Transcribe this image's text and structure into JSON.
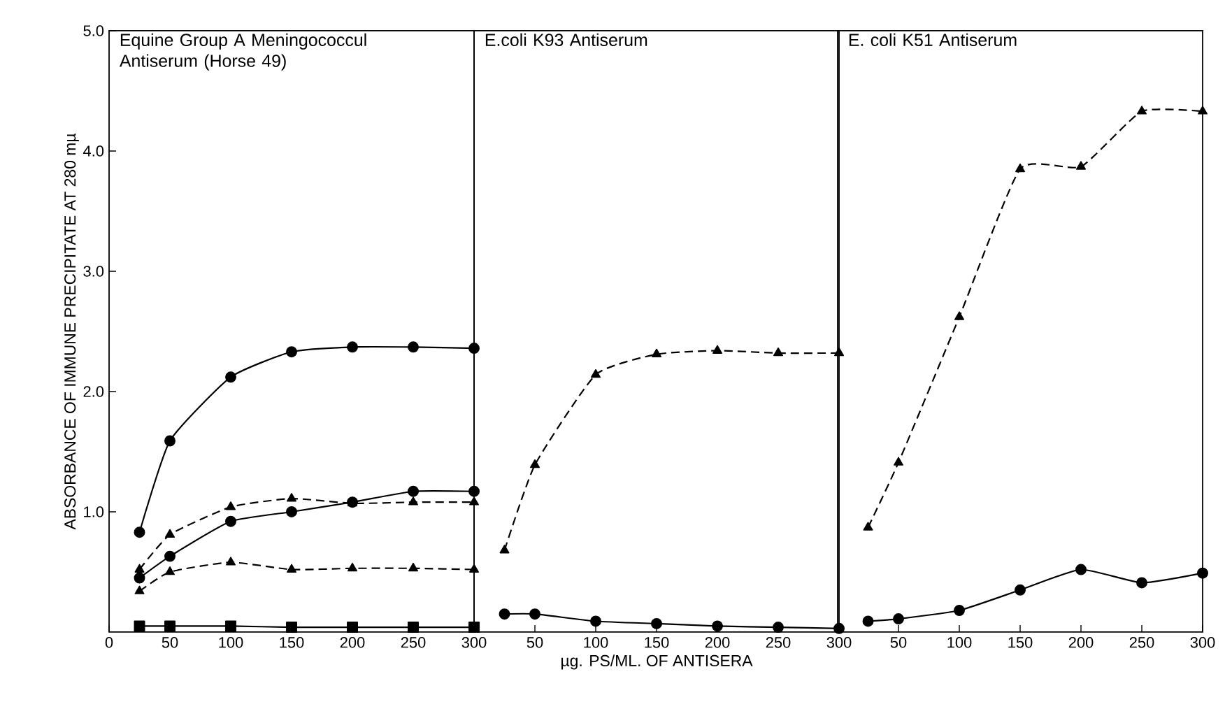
{
  "chart_data": [
    {
      "type": "line",
      "title": "Equine Group A Meningococcul Antiserum (Horse 49)",
      "ylabel": "ABSORBANCE OF IMMUNE PRECIPITATE AT 280 mµ",
      "x": [
        25,
        50,
        100,
        150,
        200,
        250,
        300
      ],
      "xlim": [
        0,
        300
      ],
      "xticks": [
        0,
        50,
        100,
        150,
        200,
        250,
        300
      ],
      "ylim": [
        0,
        5
      ],
      "yticks": [
        {
          "value": 1,
          "label": "1.0"
        },
        {
          "value": 2,
          "label": "2.0"
        },
        {
          "value": 3,
          "label": "3.0"
        },
        {
          "value": 4,
          "label": "4.0"
        },
        {
          "value": 5,
          "label": "5.0"
        }
      ],
      "grid": false,
      "series": [
        {
          "color": "#000000",
          "marker": "circle",
          "line_style": "solid",
          "values": [
            0.83,
            1.59,
            2.12,
            2.33,
            2.37,
            2.37,
            2.36
          ]
        },
        {
          "color": "#000000",
          "marker": "circle",
          "line_style": "solid",
          "values": [
            0.45,
            0.63,
            0.92,
            1.0,
            1.08,
            1.17,
            1.17
          ]
        },
        {
          "color": "#000000",
          "marker": "triangle",
          "line_style": "dashed",
          "values": [
            0.52,
            0.81,
            1.04,
            1.11,
            1.07,
            1.08,
            1.08
          ]
        },
        {
          "color": "#000000",
          "marker": "triangle",
          "line_style": "dashed",
          "values": [
            0.34,
            0.5,
            0.58,
            0.52,
            0.53,
            0.53,
            0.52
          ]
        },
        {
          "color": "#000000",
          "marker": "square",
          "line_style": "solid",
          "values": [
            0.05,
            0.05,
            0.05,
            0.04,
            0.04,
            0.04,
            0.04
          ]
        }
      ]
    },
    {
      "type": "line",
      "title": "E.coli K93 Antiserum",
      "xlabel": "µg. PS/ML. OF ANTISERA",
      "x": [
        25,
        50,
        100,
        150,
        200,
        250,
        300
      ],
      "xlim": [
        0,
        300
      ],
      "xticks": [
        50,
        100,
        150,
        200,
        250,
        300
      ],
      "ylim": [
        0,
        5
      ],
      "tick_labels": "x",
      "grid": false,
      "series": [
        {
          "color": "#000000",
          "marker": "triangle",
          "line_style": "dashed",
          "values": [
            0.68,
            1.39,
            2.14,
            2.31,
            2.34,
            2.32,
            2.32
          ]
        },
        {
          "color": "#000000",
          "marker": "circle",
          "line_style": "solid",
          "values": [
            0.15,
            0.15,
            0.09,
            0.07,
            0.05,
            0.04,
            0.03
          ]
        }
      ]
    },
    {
      "type": "line",
      "title": "E. coli K51 Antiserum",
      "x": [
        25,
        50,
        100,
        150,
        200,
        250,
        300
      ],
      "xlim": [
        0,
        300
      ],
      "xticks": [
        50,
        100,
        150,
        200,
        250,
        300
      ],
      "ylim": [
        0,
        5
      ],
      "tick_labels": "x",
      "grid": false,
      "series": [
        {
          "color": "#000000",
          "marker": "triangle",
          "line_style": "dashed",
          "values": [
            0.87,
            1.41,
            2.62,
            3.85,
            3.87,
            4.33,
            4.33
          ]
        },
        {
          "color": "#000000",
          "marker": "circle",
          "line_style": "solid",
          "values": [
            0.09,
            0.11,
            0.18,
            0.35,
            0.52,
            0.41,
            0.49
          ]
        }
      ]
    }
  ]
}
